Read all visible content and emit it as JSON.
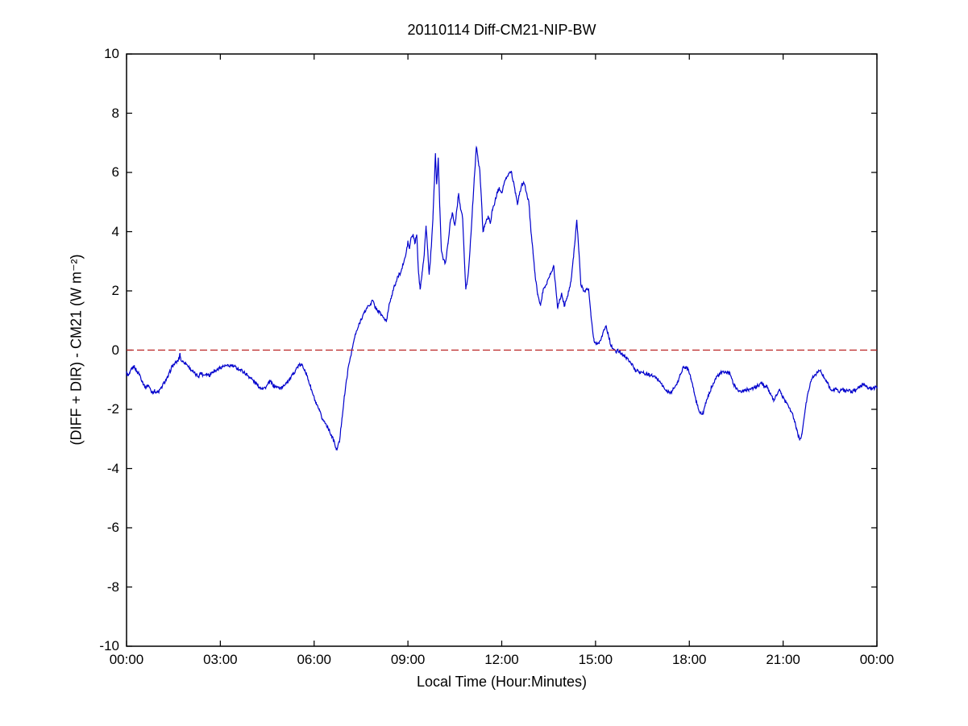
{
  "figure": {
    "background": "#ffffff",
    "axis_color": "#000000",
    "text_color": "#000000"
  },
  "chart_data": {
    "type": "line",
    "title": "20110114 Diff-CM21-NIP-BW",
    "xlabel": "Local Time (Hour:Minutes)",
    "ylabel": "(DIFF + DIR) - CM21 (W m⁻²)",
    "xlim_hours": [
      0,
      24
    ],
    "ylim": [
      -10,
      10
    ],
    "grid": false,
    "legend": null,
    "x_ticks": [
      {
        "t": 0,
        "label": "00:00"
      },
      {
        "t": 3,
        "label": "03:00"
      },
      {
        "t": 6,
        "label": "06:00"
      },
      {
        "t": 9,
        "label": "09:00"
      },
      {
        "t": 12,
        "label": "12:00"
      },
      {
        "t": 15,
        "label": "15:00"
      },
      {
        "t": 18,
        "label": "18:00"
      },
      {
        "t": 21,
        "label": "21:00"
      },
      {
        "t": 24,
        "label": "00:00"
      }
    ],
    "y_ticks": [
      {
        "v": -10,
        "label": "-10"
      },
      {
        "v": -8,
        "label": "-8"
      },
      {
        "v": -6,
        "label": "-6"
      },
      {
        "v": -4,
        "label": "-4"
      },
      {
        "v": -2,
        "label": "-2"
      },
      {
        "v": 0,
        "label": "0"
      },
      {
        "v": 2,
        "label": "2"
      },
      {
        "v": 4,
        "label": "4"
      },
      {
        "v": 6,
        "label": "6"
      },
      {
        "v": 8,
        "label": "8"
      },
      {
        "v": 10,
        "label": "10"
      }
    ],
    "noise_amplitude": 0.06,
    "series": [
      {
        "name": "diff-cm21-nip-bw-difference",
        "color": "#0000cc",
        "style": "solid",
        "points": [
          [
            0.0,
            -0.75
          ],
          [
            0.05,
            -0.88
          ],
          [
            0.1,
            -0.8
          ],
          [
            0.17,
            -0.62
          ],
          [
            0.25,
            -0.55
          ],
          [
            0.33,
            -0.72
          ],
          [
            0.42,
            -0.82
          ],
          [
            0.5,
            -1.05
          ],
          [
            0.6,
            -1.26
          ],
          [
            0.7,
            -1.18
          ],
          [
            0.8,
            -1.42
          ],
          [
            0.9,
            -1.38
          ],
          [
            1.0,
            -1.44
          ],
          [
            1.1,
            -1.3
          ],
          [
            1.2,
            -1.1
          ],
          [
            1.32,
            -0.92
          ],
          [
            1.45,
            -0.56
          ],
          [
            1.55,
            -0.45
          ],
          [
            1.62,
            -0.38
          ],
          [
            1.68,
            -0.3
          ],
          [
            1.71,
            -0.1
          ],
          [
            1.74,
            -0.35
          ],
          [
            1.8,
            -0.38
          ],
          [
            1.9,
            -0.45
          ],
          [
            2.0,
            -0.58
          ],
          [
            2.1,
            -0.7
          ],
          [
            2.2,
            -0.82
          ],
          [
            2.3,
            -0.88
          ],
          [
            2.38,
            -0.76
          ],
          [
            2.45,
            -0.84
          ],
          [
            2.55,
            -0.8
          ],
          [
            2.65,
            -0.85
          ],
          [
            2.75,
            -0.72
          ],
          [
            2.85,
            -0.7
          ],
          [
            2.95,
            -0.62
          ],
          [
            3.05,
            -0.56
          ],
          [
            3.15,
            -0.53
          ],
          [
            3.25,
            -0.54
          ],
          [
            3.35,
            -0.52
          ],
          [
            3.45,
            -0.56
          ],
          [
            3.55,
            -0.62
          ],
          [
            3.7,
            -0.7
          ],
          [
            3.86,
            -0.84
          ],
          [
            4.0,
            -0.97
          ],
          [
            4.12,
            -1.1
          ],
          [
            4.25,
            -1.25
          ],
          [
            4.35,
            -1.28
          ],
          [
            4.45,
            -1.27
          ],
          [
            4.59,
            -1.05
          ],
          [
            4.7,
            -1.2
          ],
          [
            4.8,
            -1.25
          ],
          [
            4.9,
            -1.28
          ],
          [
            5.0,
            -1.25
          ],
          [
            5.1,
            -1.1
          ],
          [
            5.25,
            -0.95
          ],
          [
            5.4,
            -0.68
          ],
          [
            5.5,
            -0.52
          ],
          [
            5.6,
            -0.5
          ],
          [
            5.7,
            -0.65
          ],
          [
            5.82,
            -1.03
          ],
          [
            5.94,
            -1.43
          ],
          [
            6.07,
            -1.84
          ],
          [
            6.17,
            -2.05
          ],
          [
            6.25,
            -2.3
          ],
          [
            6.43,
            -2.58
          ],
          [
            6.56,
            -2.9
          ],
          [
            6.65,
            -3.12
          ],
          [
            6.71,
            -3.38
          ],
          [
            6.76,
            -3.22
          ],
          [
            6.81,
            -3.1
          ],
          [
            6.89,
            -2.3
          ],
          [
            6.97,
            -1.55
          ],
          [
            7.07,
            -0.75
          ],
          [
            7.15,
            -0.28
          ],
          [
            7.22,
            0.05
          ],
          [
            7.3,
            0.45
          ],
          [
            7.4,
            0.75
          ],
          [
            7.5,
            1.05
          ],
          [
            7.6,
            1.25
          ],
          [
            7.7,
            1.45
          ],
          [
            7.8,
            1.55
          ],
          [
            7.87,
            1.68
          ],
          [
            7.95,
            1.45
          ],
          [
            8.05,
            1.32
          ],
          [
            8.15,
            1.2
          ],
          [
            8.25,
            1.05
          ],
          [
            8.31,
            0.95
          ],
          [
            8.4,
            1.55
          ],
          [
            8.48,
            1.85
          ],
          [
            8.57,
            2.16
          ],
          [
            8.69,
            2.5
          ],
          [
            8.78,
            2.65
          ],
          [
            8.85,
            2.9
          ],
          [
            8.93,
            3.2
          ],
          [
            9.0,
            3.65
          ],
          [
            9.05,
            3.42
          ],
          [
            9.1,
            3.8
          ],
          [
            9.17,
            3.88
          ],
          [
            9.22,
            3.6
          ],
          [
            9.28,
            3.9
          ],
          [
            9.34,
            2.6
          ],
          [
            9.39,
            2.05
          ],
          [
            9.45,
            2.6
          ],
          [
            9.52,
            3.2
          ],
          [
            9.58,
            4.2
          ],
          [
            9.63,
            3.4
          ],
          [
            9.68,
            2.55
          ],
          [
            9.75,
            3.5
          ],
          [
            9.8,
            4.5
          ],
          [
            9.85,
            5.8
          ],
          [
            9.88,
            6.65
          ],
          [
            9.92,
            5.6
          ],
          [
            9.97,
            6.5
          ],
          [
            10.02,
            4.8
          ],
          [
            10.07,
            3.35
          ],
          [
            10.13,
            3.05
          ],
          [
            10.2,
            2.95
          ],
          [
            10.28,
            3.6
          ],
          [
            10.35,
            4.3
          ],
          [
            10.42,
            4.65
          ],
          [
            10.5,
            4.2
          ],
          [
            10.57,
            4.8
          ],
          [
            10.62,
            5.3
          ],
          [
            10.68,
            4.8
          ],
          [
            10.75,
            4.45
          ],
          [
            10.8,
            3.2
          ],
          [
            10.85,
            2.05
          ],
          [
            10.92,
            2.5
          ],
          [
            10.98,
            3.3
          ],
          [
            11.05,
            4.5
          ],
          [
            11.12,
            5.8
          ],
          [
            11.19,
            6.85
          ],
          [
            11.25,
            6.4
          ],
          [
            11.3,
            6.05
          ],
          [
            11.35,
            5.1
          ],
          [
            11.4,
            4.0
          ],
          [
            11.45,
            4.2
          ],
          [
            11.5,
            4.35
          ],
          [
            11.57,
            4.5
          ],
          [
            11.63,
            4.3
          ],
          [
            11.7,
            4.7
          ],
          [
            11.78,
            5.0
          ],
          [
            11.85,
            5.3
          ],
          [
            11.92,
            5.5
          ],
          [
            12.0,
            5.3
          ],
          [
            12.07,
            5.6
          ],
          [
            12.15,
            5.8
          ],
          [
            12.22,
            5.95
          ],
          [
            12.3,
            6.05
          ],
          [
            12.37,
            5.7
          ],
          [
            12.45,
            5.25
          ],
          [
            12.5,
            4.9
          ],
          [
            12.57,
            5.3
          ],
          [
            12.65,
            5.6
          ],
          [
            12.72,
            5.62
          ],
          [
            12.8,
            5.3
          ],
          [
            12.87,
            4.95
          ],
          [
            12.94,
            3.95
          ],
          [
            13.0,
            3.3
          ],
          [
            13.07,
            2.5
          ],
          [
            13.15,
            1.9
          ],
          [
            13.24,
            1.5
          ],
          [
            13.32,
            2.0
          ],
          [
            13.45,
            2.3
          ],
          [
            13.55,
            2.55
          ],
          [
            13.66,
            2.85
          ],
          [
            13.73,
            2.1
          ],
          [
            13.79,
            1.42
          ],
          [
            13.86,
            1.7
          ],
          [
            13.92,
            1.9
          ],
          [
            14.0,
            1.5
          ],
          [
            14.08,
            1.75
          ],
          [
            14.15,
            2.0
          ],
          [
            14.22,
            2.4
          ],
          [
            14.3,
            3.2
          ],
          [
            14.4,
            4.4
          ],
          [
            14.47,
            3.3
          ],
          [
            14.53,
            2.2
          ],
          [
            14.6,
            2.05
          ],
          [
            14.66,
            2.0
          ],
          [
            14.72,
            2.05
          ],
          [
            14.78,
            2.08
          ],
          [
            14.85,
            1.2
          ],
          [
            14.95,
            0.32
          ],
          [
            15.05,
            0.22
          ],
          [
            15.12,
            0.28
          ],
          [
            15.2,
            0.45
          ],
          [
            15.28,
            0.7
          ],
          [
            15.34,
            0.82
          ],
          [
            15.42,
            0.45
          ],
          [
            15.5,
            0.15
          ],
          [
            15.58,
            0.02
          ],
          [
            15.65,
            -0.08
          ],
          [
            15.72,
            0.0
          ],
          [
            15.8,
            -0.1
          ],
          [
            15.9,
            -0.18
          ],
          [
            16.0,
            -0.28
          ],
          [
            16.1,
            -0.36
          ],
          [
            16.2,
            -0.55
          ],
          [
            16.28,
            -0.68
          ],
          [
            16.4,
            -0.72
          ],
          [
            16.54,
            -0.78
          ],
          [
            16.68,
            -0.82
          ],
          [
            16.8,
            -0.86
          ],
          [
            16.95,
            -0.95
          ],
          [
            17.06,
            -1.05
          ],
          [
            17.2,
            -1.3
          ],
          [
            17.3,
            -1.4
          ],
          [
            17.4,
            -1.45
          ],
          [
            17.5,
            -1.3
          ],
          [
            17.62,
            -1.12
          ],
          [
            17.72,
            -0.8
          ],
          [
            17.8,
            -0.6
          ],
          [
            17.9,
            -0.58
          ],
          [
            17.97,
            -0.63
          ],
          [
            18.05,
            -0.95
          ],
          [
            18.15,
            -1.4
          ],
          [
            18.25,
            -1.85
          ],
          [
            18.35,
            -2.12
          ],
          [
            18.42,
            -2.18
          ],
          [
            18.5,
            -1.9
          ],
          [
            18.57,
            -1.65
          ],
          [
            18.65,
            -1.45
          ],
          [
            18.72,
            -1.22
          ],
          [
            18.82,
            -1.0
          ],
          [
            18.9,
            -0.88
          ],
          [
            19.0,
            -0.78
          ],
          [
            19.1,
            -0.74
          ],
          [
            19.2,
            -0.76
          ],
          [
            19.3,
            -0.8
          ],
          [
            19.4,
            -1.12
          ],
          [
            19.5,
            -1.28
          ],
          [
            19.6,
            -1.38
          ],
          [
            19.7,
            -1.4
          ],
          [
            19.8,
            -1.35
          ],
          [
            19.9,
            -1.32
          ],
          [
            20.0,
            -1.3
          ],
          [
            20.1,
            -1.26
          ],
          [
            20.2,
            -1.2
          ],
          [
            20.3,
            -1.12
          ],
          [
            20.4,
            -1.2
          ],
          [
            20.5,
            -1.25
          ],
          [
            20.6,
            -1.5
          ],
          [
            20.7,
            -1.72
          ],
          [
            20.8,
            -1.5
          ],
          [
            20.87,
            -1.34
          ],
          [
            20.95,
            -1.5
          ],
          [
            21.05,
            -1.7
          ],
          [
            21.15,
            -1.85
          ],
          [
            21.25,
            -2.05
          ],
          [
            21.35,
            -2.32
          ],
          [
            21.43,
            -2.68
          ],
          [
            21.53,
            -3.05
          ],
          [
            21.6,
            -2.85
          ],
          [
            21.7,
            -2.05
          ],
          [
            21.8,
            -1.4
          ],
          [
            21.9,
            -1.0
          ],
          [
            22.0,
            -0.85
          ],
          [
            22.1,
            -0.75
          ],
          [
            22.2,
            -0.7
          ],
          [
            22.3,
            -0.9
          ],
          [
            22.4,
            -1.05
          ],
          [
            22.5,
            -1.3
          ],
          [
            22.6,
            -1.38
          ],
          [
            22.7,
            -1.3
          ],
          [
            22.8,
            -1.42
          ],
          [
            22.9,
            -1.32
          ],
          [
            23.0,
            -1.4
          ],
          [
            23.1,
            -1.35
          ],
          [
            23.2,
            -1.42
          ],
          [
            23.3,
            -1.36
          ],
          [
            23.4,
            -1.28
          ],
          [
            23.5,
            -1.2
          ],
          [
            23.6,
            -1.15
          ],
          [
            23.7,
            -1.25
          ],
          [
            23.8,
            -1.32
          ],
          [
            23.9,
            -1.28
          ],
          [
            24.0,
            -1.25
          ]
        ]
      },
      {
        "name": "zero-reference-line",
        "color": "#bb2222",
        "style": "dashed",
        "points": [
          [
            0,
            0
          ],
          [
            24,
            0
          ]
        ]
      }
    ]
  }
}
